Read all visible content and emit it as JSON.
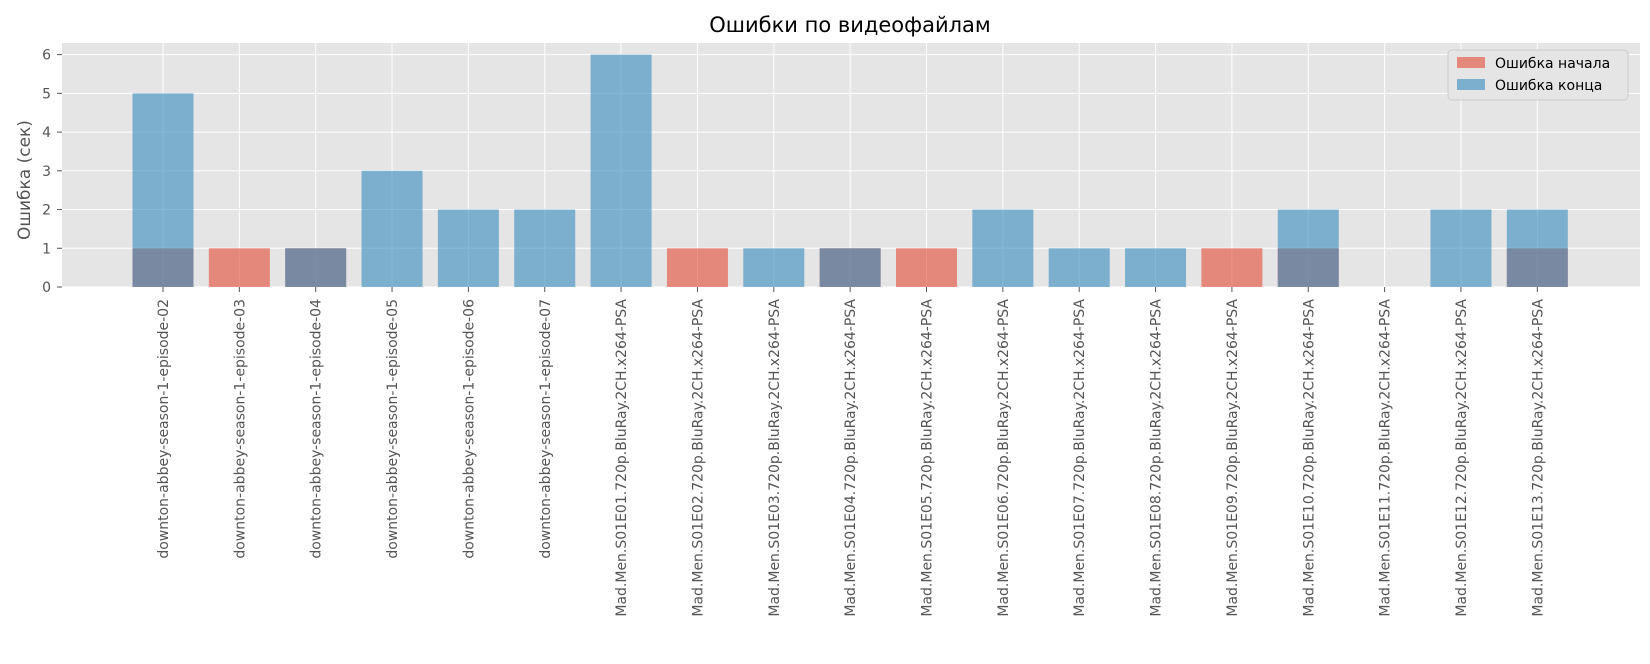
{
  "chart_data": {
    "type": "bar",
    "title": "Ошибки по видеофайлам",
    "xlabel": "",
    "ylabel": "Ошибка (сек)",
    "ylim": [
      0,
      6.3
    ],
    "yticks": [
      0,
      1,
      2,
      3,
      4,
      5,
      6
    ],
    "grid": true,
    "legend_position": "top-right",
    "bar_mode": "overlay",
    "categories": [
      "downton-abbey-season-1-episode-02",
      "downton-abbey-season-1-episode-03",
      "downton-abbey-season-1-episode-04",
      "downton-abbey-season-1-episode-05",
      "downton-abbey-season-1-episode-06",
      "downton-abbey-season-1-episode-07",
      "Mad.Men.S01E01.720p.BluRay.2CH.x264-PSA",
      "Mad.Men.S01E02.720p.BluRay.2CH.x264-PSA",
      "Mad.Men.S01E03.720p.BluRay.2CH.x264-PSA",
      "Mad.Men.S01E04.720p.BluRay.2CH.x264-PSA",
      "Mad.Men.S01E05.720p.BluRay.2CH.x264-PSA",
      "Mad.Men.S01E06.720p.BluRay.2CH.x264-PSA",
      "Mad.Men.S01E07.720p.BluRay.2CH.x264-PSA",
      "Mad.Men.S01E08.720p.BluRay.2CH.x264-PSA",
      "Mad.Men.S01E09.720p.BluRay.2CH.x264-PSA",
      "Mad.Men.S01E10.720p.BluRay.2CH.x264-PSA",
      "Mad.Men.S01E11.720p.BluRay.2CH.x264-PSA",
      "Mad.Men.S01E12.720p.BluRay.2CH.x264-PSA",
      "Mad.Men.S01E13.720p.BluRay.2CH.x264-PSA"
    ],
    "series": [
      {
        "name": "Ошибка начала",
        "color": "#E24A33",
        "values": [
          1,
          1,
          1,
          0,
          0,
          0,
          0,
          1,
          0,
          1,
          1,
          0,
          0,
          0,
          1,
          1,
          0,
          0,
          1
        ]
      },
      {
        "name": "Ошибка конца",
        "color": "#348ABD",
        "values": [
          5,
          0,
          1,
          3,
          2,
          2,
          6,
          0,
          1,
          1,
          0,
          2,
          1,
          1,
          0,
          2,
          0,
          2,
          2
        ]
      }
    ],
    "colors": {
      "plot_background": "#E5E5E5",
      "grid": "#FFFFFF",
      "tick_text": "#555555",
      "title_text": "#000000"
    }
  }
}
